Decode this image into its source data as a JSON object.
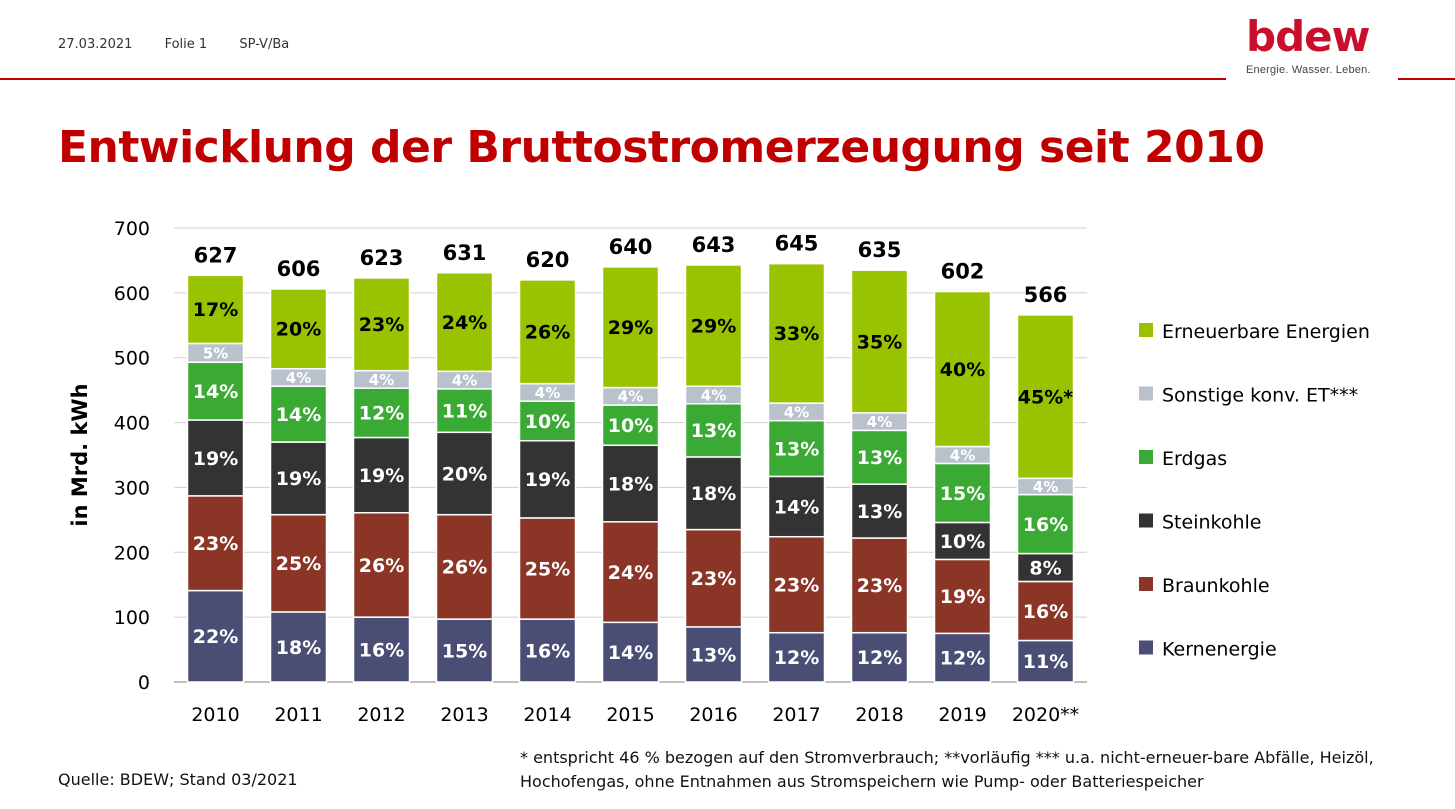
{
  "header": {
    "date": "27.03.2021",
    "slide": "Folie 1",
    "author": "SP-V/Ba"
  },
  "logo": {
    "word": "bdew",
    "tagline": "Energie. Wasser. Leben.",
    "color": "#c8102e"
  },
  "title": "Entwicklung der Bruttostromerzeugung seit 2010",
  "chart_data": {
    "type": "bar",
    "stacked": true,
    "ylabel": "in Mrd. kWh",
    "ylim": [
      0,
      700
    ],
    "yticks": [
      0,
      100,
      200,
      300,
      400,
      500,
      600,
      700
    ],
    "grid": true,
    "legend_position": "right",
    "categories": [
      "2010",
      "2011",
      "2012",
      "2013",
      "2014",
      "2015",
      "2016",
      "2017",
      "2018",
      "2019",
      "2020**"
    ],
    "totals": [
      627,
      606,
      623,
      631,
      620,
      640,
      643,
      645,
      635,
      602,
      566
    ],
    "series": [
      {
        "name": "Kernenergie",
        "color": "#4a4e74",
        "values": [
          141,
          108,
          100,
          97,
          97,
          92,
          85,
          76,
          76,
          75,
          64
        ],
        "labels": [
          "22%",
          "18%",
          "16%",
          "15%",
          "16%",
          "14%",
          "13%",
          "12%",
          "12%",
          "12%",
          "11%"
        ]
      },
      {
        "name": "Braunkohle",
        "color": "#8b3526",
        "values": [
          146,
          150,
          161,
          161,
          156,
          155,
          150,
          148,
          146,
          114,
          91
        ],
        "labels": [
          "23%",
          "25%",
          "26%",
          "26%",
          "25%",
          "24%",
          "23%",
          "23%",
          "23%",
          "19%",
          "16%"
        ]
      },
      {
        "name": "Steinkohle",
        "color": "#333333",
        "values": [
          117,
          112,
          116,
          127,
          119,
          118,
          112,
          93,
          83,
          57,
          43
        ],
        "labels": [
          "19%",
          "19%",
          "19%",
          "20%",
          "19%",
          "18%",
          "18%",
          "14%",
          "13%",
          "10%",
          "8%"
        ]
      },
      {
        "name": "Erdgas",
        "color": "#3aaa35",
        "values": [
          89,
          86,
          76,
          67,
          61,
          62,
          82,
          86,
          83,
          91,
          91
        ],
        "labels": [
          "14%",
          "14%",
          "12%",
          "11%",
          "10%",
          "10%",
          "13%",
          "13%",
          "13%",
          "15%",
          "16%"
        ]
      },
      {
        "name": "Sonstige konv. ET***",
        "color": "#b9c2cc",
        "values": [
          29,
          27,
          27,
          27,
          27,
          27,
          27,
          27,
          27,
          26,
          25
        ],
        "labels": [
          "5%",
          "4%",
          "4%",
          "4%",
          "4%",
          "4%",
          "4%",
          "4%",
          "4%",
          "4%",
          "4%"
        ]
      },
      {
        "name": "Erneuerbare Energien",
        "color": "#99c300",
        "values": [
          105,
          123,
          143,
          152,
          160,
          186,
          187,
          215,
          220,
          239,
          252
        ],
        "labels": [
          "17%",
          "20%",
          "23%",
          "24%",
          "26%",
          "29%",
          "29%",
          "33%",
          "35%",
          "40%",
          "45%*"
        ]
      }
    ]
  },
  "source": "Quelle: BDEW; Stand 03/2021",
  "footnote": "* entspricht 46 % bezogen auf den Stromverbrauch; **vorläufig *** u.a. nicht-erneuer-bare Abfälle, Heizöl, Hochofengas, ohne Entnahmen aus Stromspeichern wie Pump- oder Batteriespeicher"
}
